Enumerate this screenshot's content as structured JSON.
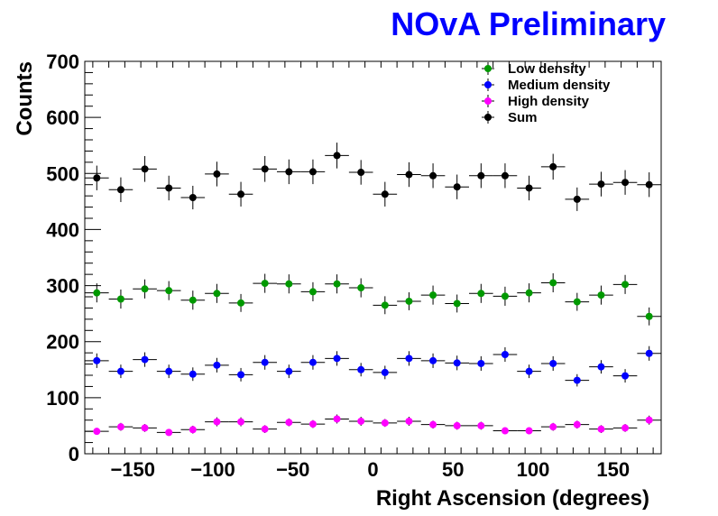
{
  "chart_data": {
    "type": "scatter",
    "title": "NOvA Preliminary",
    "title_color": "#0000ff",
    "xlabel": "Right Ascension (degrees)",
    "ylabel": "Counts",
    "xlim": [
      -180,
      180
    ],
    "ylim": [
      0,
      700
    ],
    "x_ticks": [
      -150,
      -100,
      -50,
      0,
      50,
      100,
      150
    ],
    "x_tick_labels": [
      "−150",
      "−100",
      "−50",
      "0",
      "50",
      "100",
      "150"
    ],
    "y_ticks": [
      0,
      100,
      200,
      300,
      400,
      500,
      600,
      700
    ],
    "y_tick_labels": [
      "0",
      "100",
      "200",
      "300",
      "400",
      "500",
      "600",
      "700"
    ],
    "grid": false,
    "legend_position": "top-right",
    "bin_width": 15,
    "x": [
      -172.5,
      -157.5,
      -142.5,
      -127.5,
      -112.5,
      -97.5,
      -82.5,
      -67.5,
      -52.5,
      -37.5,
      -22.5,
      -7.5,
      7.5,
      22.5,
      37.5,
      52.5,
      67.5,
      82.5,
      97.5,
      112.5,
      127.5,
      142.5,
      157.5,
      172.5
    ],
    "series": [
      {
        "name": "Low density",
        "color": "#009900",
        "values": [
          287,
          276,
          294,
          291,
          274,
          286,
          269,
          304,
          303,
          289,
          303,
          296,
          265,
          272,
          283,
          268,
          286,
          281,
          287,
          305,
          271,
          283,
          302,
          245
        ],
        "errors": [
          17,
          17,
          17,
          17,
          17,
          17,
          16,
          17,
          17,
          17,
          17,
          17,
          16,
          16,
          17,
          16,
          17,
          17,
          17,
          17,
          16,
          17,
          17,
          16
        ]
      },
      {
        "name": "Medium density",
        "color": "#0000ff",
        "values": [
          166,
          147,
          168,
          147,
          142,
          158,
          141,
          163,
          147,
          163,
          170,
          150,
          145,
          170,
          166,
          162,
          161,
          177,
          147,
          161,
          131,
          155,
          139,
          179
        ],
        "errors": [
          13,
          12,
          13,
          12,
          12,
          13,
          12,
          13,
          12,
          13,
          13,
          12,
          12,
          13,
          13,
          13,
          13,
          13,
          12,
          13,
          11,
          12,
          12,
          13
        ]
      },
      {
        "name": "High density",
        "color": "#ff00ff",
        "values": [
          40,
          48,
          46,
          38,
          43,
          57,
          57,
          44,
          56,
          53,
          62,
          58,
          55,
          58,
          52,
          50,
          50,
          41,
          41,
          48,
          52,
          44,
          46,
          60
        ],
        "errors": [
          6,
          7,
          7,
          6,
          7,
          8,
          8,
          7,
          7,
          7,
          8,
          8,
          7,
          8,
          7,
          7,
          7,
          6,
          6,
          7,
          7,
          7,
          7,
          8
        ]
      },
      {
        "name": "Sum",
        "color": "#000000",
        "values": [
          492,
          471,
          508,
          474,
          457,
          499,
          463,
          508,
          503,
          503,
          532,
          502,
          463,
          498,
          496,
          476,
          496,
          496,
          474,
          512,
          454,
          481,
          484,
          480
        ],
        "errors": [
          22,
          22,
          23,
          22,
          21,
          22,
          22,
          23,
          22,
          22,
          23,
          22,
          22,
          22,
          22,
          22,
          22,
          22,
          22,
          23,
          21,
          22,
          22,
          22
        ]
      }
    ]
  }
}
